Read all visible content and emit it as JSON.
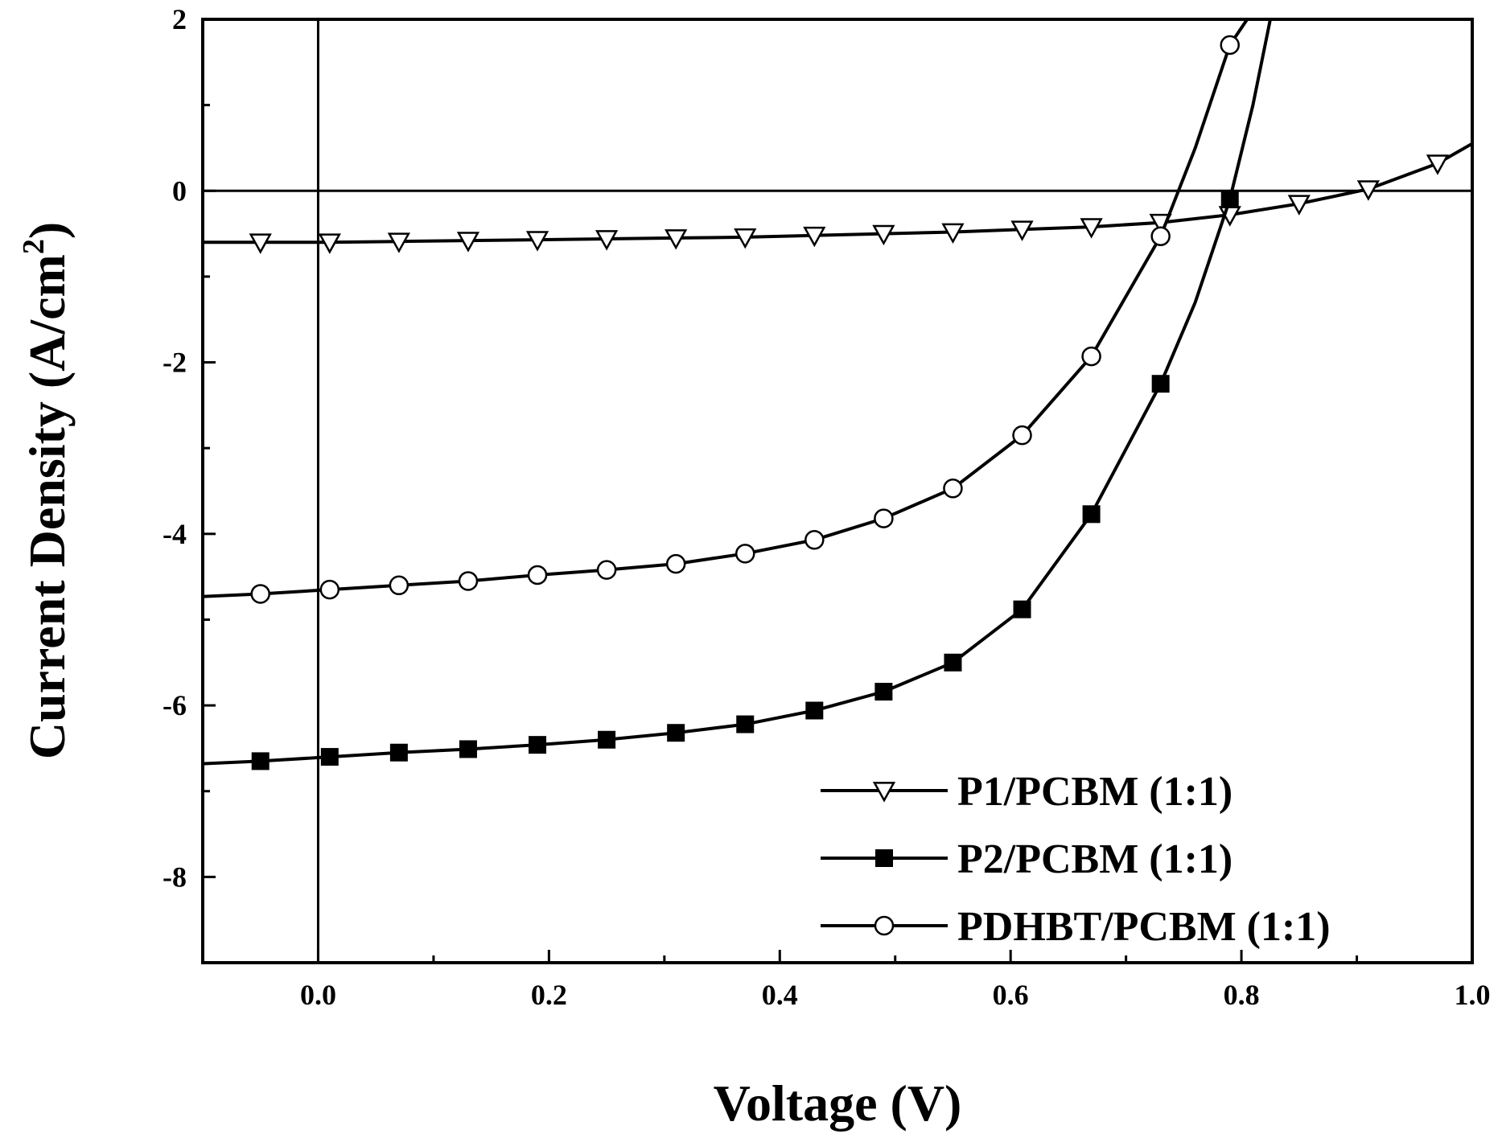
{
  "chart_data": {
    "type": "line",
    "xlabel": "Voltage (V)",
    "ylabel_main": "Current Density (A/cm",
    "ylabel_sup": "2",
    "ylabel_close": ")",
    "xlim": [
      -0.1,
      1.0
    ],
    "ylim": [
      -9,
      2
    ],
    "xticks": [
      0.0,
      0.2,
      0.4,
      0.6,
      0.8,
      1.0
    ],
    "xtick_labels": [
      "0.0",
      "0.2",
      "0.4",
      "0.6",
      "0.8",
      "1.0"
    ],
    "yticks": [
      2,
      0,
      -2,
      -4,
      -6,
      -8
    ],
    "ytick_labels": [
      "2",
      "0",
      "-2",
      "-4",
      "-6",
      "-8"
    ],
    "reference_lines": {
      "x": 0,
      "y": 0
    },
    "grid": false,
    "legend_position": "bottom-right",
    "series": [
      {
        "name": "P1/PCBM (1:1)",
        "marker": "open-down-triangle",
        "x": [
          -0.1,
          -0.05,
          0.01,
          0.07,
          0.13,
          0.19,
          0.25,
          0.31,
          0.37,
          0.43,
          0.49,
          0.55,
          0.61,
          0.67,
          0.73,
          0.79,
          0.85,
          0.91,
          0.97,
          1.0
        ],
        "y": [
          -0.6,
          -0.6,
          -0.6,
          -0.59,
          -0.58,
          -0.57,
          -0.56,
          -0.55,
          -0.54,
          -0.52,
          -0.5,
          -0.48,
          -0.45,
          -0.42,
          -0.37,
          -0.28,
          -0.15,
          0.02,
          0.32,
          0.55
        ]
      },
      {
        "name": "P2/PCBM (1:1)",
        "marker": "filled-square",
        "x": [
          -0.1,
          -0.05,
          0.01,
          0.07,
          0.13,
          0.19,
          0.25,
          0.31,
          0.37,
          0.43,
          0.49,
          0.55,
          0.61,
          0.67,
          0.73,
          0.76,
          0.79,
          0.81,
          0.825
        ],
        "y": [
          -6.68,
          -6.65,
          -6.6,
          -6.55,
          -6.51,
          -6.46,
          -6.4,
          -6.32,
          -6.22,
          -6.06,
          -5.84,
          -5.5,
          -4.88,
          -3.77,
          -2.25,
          -1.3,
          -0.1,
          1.0,
          2.0
        ]
      },
      {
        "name": "PDHBT/PCBM (1:1)",
        "marker": "open-circle",
        "x": [
          -0.1,
          -0.05,
          0.01,
          0.07,
          0.13,
          0.19,
          0.25,
          0.31,
          0.37,
          0.43,
          0.49,
          0.55,
          0.61,
          0.67,
          0.73,
          0.76,
          0.79,
          0.805
        ],
        "y": [
          -4.73,
          -4.7,
          -4.65,
          -4.6,
          -4.55,
          -4.48,
          -4.42,
          -4.35,
          -4.23,
          -4.07,
          -3.82,
          -3.47,
          -2.85,
          -1.93,
          -0.53,
          0.5,
          1.7,
          2.0
        ]
      }
    ]
  }
}
